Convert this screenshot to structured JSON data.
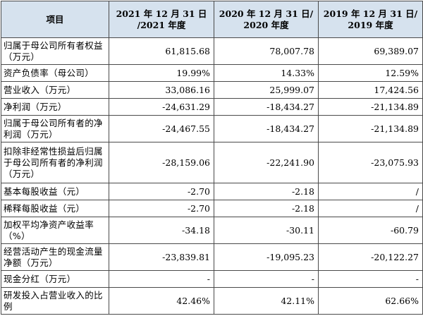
{
  "header": {
    "col0": "项目",
    "col1": "2021 年 12 月 31 日\n/2021 年度",
    "col2": "2020 年 12 月 31 日/\n2020 年度",
    "col3": "2019 年 12 月 31 日/\n2019 年度"
  },
  "rows": [
    {
      "label": "归属于母公司所有者权益（万元）",
      "v2021": "61,815.68",
      "v2020": "78,007.78",
      "v2019": "69,389.07"
    },
    {
      "label": "资产负债率（母公司）",
      "v2021": "19.99%",
      "v2020": "14.33%",
      "v2019": "12.59%"
    },
    {
      "label": "营业收入（万元）",
      "v2021": "33,086.16",
      "v2020": "25,999.07",
      "v2019": "17,424.56"
    },
    {
      "label": "净利润（万元）",
      "v2021": "-24,631.29",
      "v2020": "-18,434.27",
      "v2019": "-21,134.89"
    },
    {
      "label": "归属于母公司所有者的净利润（万元）",
      "v2021": "-24,467.55",
      "v2020": "-18,434.27",
      "v2019": "-21,134.89"
    },
    {
      "label": "扣除非经常性损益后归属于母公司所有者的净利润（万元）",
      "v2021": "-28,159.06",
      "v2020": "-22,241.90",
      "v2019": "-23,075.93"
    },
    {
      "label": "基本每股收益（元）",
      "v2021": "-2.70",
      "v2020": "-2.18",
      "v2019": "/"
    },
    {
      "label": "稀释每股收益（元）",
      "v2021": "-2.70",
      "v2020": "-2.18",
      "v2019": "/"
    },
    {
      "label": "加权平均净资产收益率（%）",
      "v2021": "-34.18",
      "v2020": "-30.11",
      "v2019": "-60.79"
    },
    {
      "label": "经营活动产生的现金流量净额（万元）",
      "v2021": "-23,839.81",
      "v2020": "-19,095.23",
      "v2019": "-20,122.27"
    },
    {
      "label": "现金分红（万元）",
      "v2021": "-",
      "v2020": "-",
      "v2019": "-"
    },
    {
      "label": "研发投入占营业收入的比例",
      "v2021": "42.46%",
      "v2020": "42.11%",
      "v2019": "62.66%"
    }
  ]
}
